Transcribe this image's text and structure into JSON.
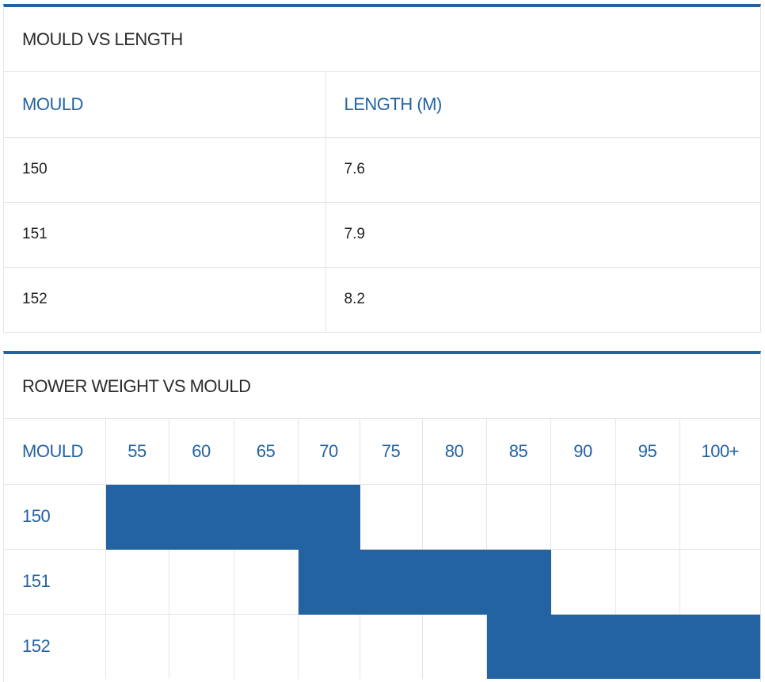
{
  "length_table": {
    "title": "MOULD VS LENGTH",
    "headers": [
      "MOULD",
      "LENGTH (M)"
    ],
    "rows": [
      {
        "mould": "150",
        "length": "7.6"
      },
      {
        "mould": "151",
        "length": "7.9"
      },
      {
        "mould": "152",
        "length": "8.2"
      }
    ]
  },
  "weight_table": {
    "title": "ROWER WEIGHT VS MOULD",
    "corner_label": "MOULD",
    "weights": [
      "55",
      "60",
      "65",
      "70",
      "75",
      "80",
      "85",
      "90",
      "95",
      "100+"
    ],
    "rows": [
      {
        "mould": "150",
        "filled": [
          true,
          true,
          true,
          true,
          false,
          false,
          false,
          false,
          false,
          false
        ]
      },
      {
        "mould": "151",
        "filled": [
          false,
          false,
          false,
          true,
          true,
          true,
          true,
          false,
          false,
          false
        ]
      },
      {
        "mould": "152",
        "filled": [
          false,
          false,
          false,
          false,
          false,
          false,
          true,
          true,
          true,
          true
        ]
      }
    ],
    "fill_color": "#2463a2"
  }
}
